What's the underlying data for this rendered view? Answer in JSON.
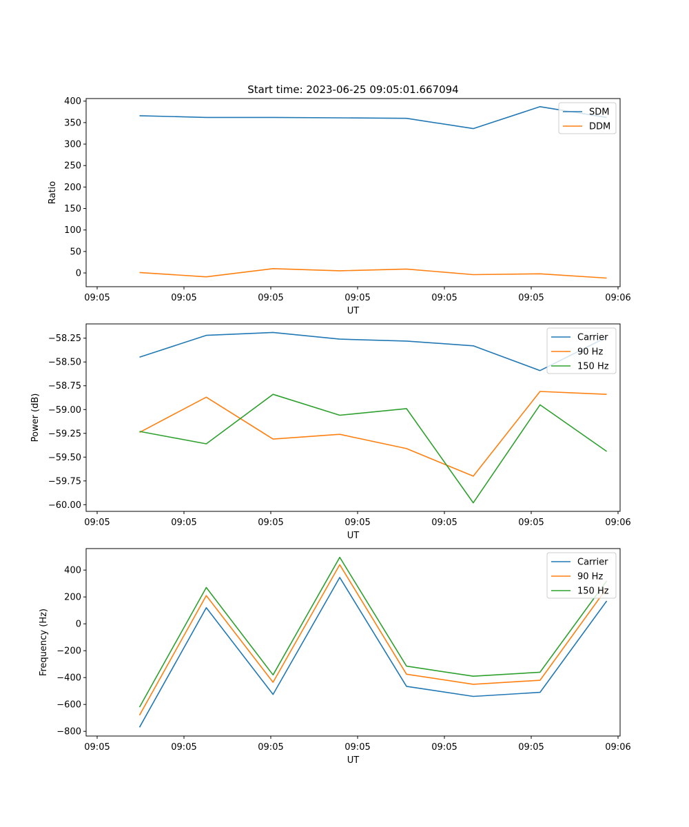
{
  "chart_data": [
    {
      "type": "line",
      "title": "Start time: 2023-06-25 09:05:01.667094",
      "xlabel": "UT",
      "ylabel": "Ratio",
      "x_tick_labels": [
        "09:05",
        "09:05",
        "09:05",
        "09:05",
        "09:05",
        "09:05",
        "09:06"
      ],
      "y_ticks": [
        "0",
        "50",
        "100",
        "150",
        "200",
        "250",
        "300",
        "350",
        "400"
      ],
      "ylim": [
        -32,
        406
      ],
      "legend": "top-right",
      "x": [
        1,
        2,
        3,
        4,
        5,
        6,
        7,
        8
      ],
      "series": [
        {
          "name": "SDM",
          "color": "#1f77b4",
          "values": [
            366,
            362,
            362,
            361,
            360,
            336,
            387,
            362
          ]
        },
        {
          "name": "DDM",
          "color": "#ff7f0e",
          "values": [
            1,
            -9,
            10,
            5,
            9,
            -4,
            -2,
            -12
          ]
        }
      ]
    },
    {
      "type": "line",
      "title": "",
      "xlabel": "UT",
      "ylabel": "Power (dB)",
      "x_tick_labels": [
        "09:05",
        "09:05",
        "09:05",
        "09:05",
        "09:05",
        "09:05",
        "09:06"
      ],
      "y_ticks": [
        "−60.00",
        "−59.75",
        "−59.50",
        "−59.25",
        "−59.00",
        "−58.75",
        "−58.50",
        "−58.25"
      ],
      "ylim": [
        -60.07,
        -58.1
      ],
      "legend": "top-right",
      "x": [
        1,
        2,
        3,
        4,
        5,
        6,
        7,
        8
      ],
      "series": [
        {
          "name": "Carrier",
          "color": "#1f77b4",
          "values": [
            -58.45,
            -58.22,
            -58.19,
            -58.26,
            -58.28,
            -58.33,
            -58.59,
            -58.24
          ]
        },
        {
          "name": "90 Hz",
          "color": "#ff7f0e",
          "values": [
            -59.24,
            -58.87,
            -59.31,
            -59.26,
            -59.41,
            -59.7,
            -58.81,
            -58.84
          ]
        },
        {
          "name": "150 Hz",
          "color": "#2ca02c",
          "values": [
            -59.23,
            -59.36,
            -58.84,
            -59.06,
            -58.99,
            -59.98,
            -58.95,
            -59.44
          ]
        }
      ]
    },
    {
      "type": "line",
      "title": "",
      "xlabel": "UT",
      "ylabel": "Frequency (Hz)",
      "x_tick_labels": [
        "09:05",
        "09:05",
        "09:05",
        "09:05",
        "09:05",
        "09:05",
        "09:06"
      ],
      "y_ticks": [
        "−800",
        "−600",
        "−400",
        "−200",
        "0",
        "200",
        "400"
      ],
      "ylim": [
        -835,
        560
      ],
      "legend": "top-right",
      "x": [
        1,
        2,
        3,
        4,
        5,
        6,
        7,
        8
      ],
      "series": [
        {
          "name": "Carrier",
          "color": "#1f77b4",
          "values": [
            -770,
            120,
            -525,
            345,
            -465,
            -540,
            -510,
            170
          ]
        },
        {
          "name": "90 Hz",
          "color": "#ff7f0e",
          "values": [
            -680,
            210,
            -435,
            440,
            -375,
            -450,
            -420,
            265
          ]
        },
        {
          "name": "150 Hz",
          "color": "#2ca02c",
          "values": [
            -620,
            270,
            -380,
            495,
            -315,
            -390,
            -360,
            320
          ]
        }
      ]
    }
  ]
}
